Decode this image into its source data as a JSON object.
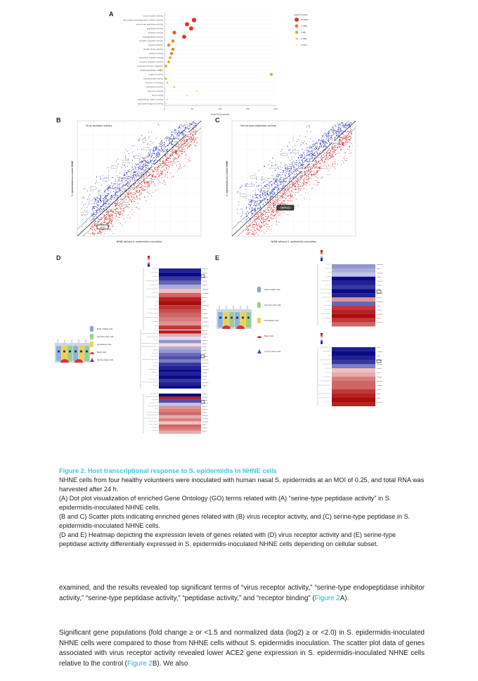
{
  "figure": {
    "panelA": {
      "letter": "A",
      "terms": [
        "virus receptor activity",
        "serine-type endopeptidase inhibitor activity",
        "serine-type peptidase activity",
        "peptidase activity",
        "receptor binding",
        "endopeptidase activity",
        "receptor regulator activity",
        "cytokine activity",
        "growth factor activity",
        "protein binding",
        "signaling receptor binding",
        "enzyme regulator activity",
        "molecular function regulator",
        "metallopeptidase activity",
        "heparin binding",
        "carbohydrate binding",
        "calcium ion binding",
        "chemokine activity",
        "hormone activity",
        "lipid binding",
        "extracellular matrix binding",
        "glycosaminoglycan binding"
      ],
      "legend_title": "Log10 P-value",
      "legend_values": [
        "25.652",
        "7.969",
        "3.66",
        "2.581",
        "1.561"
      ],
      "xlabel": "Fold Enrichment",
      "xticks": [
        "0",
        "50",
        "100",
        "150",
        "200"
      ]
    },
    "panelB": {
      "letter": "B",
      "title": "Virus receptor activity",
      "ylabel": "S. epidermidis-inoculated NHNE",
      "xlabel": "NHNE without S. epidermidis inoculation",
      "highlight": "ACE2"
    },
    "panelC": {
      "letter": "C",
      "title": "Serine-type peptidase activity",
      "ylabel": "S. epidermidis-inoculated NHNE",
      "xlabel": "NHNE without S. epidermidis inoculation",
      "highlight": "TMPRSS2"
    },
    "panelD": {
      "letter": "D"
    },
    "panelE": {
      "letter": "E"
    },
    "cell_legend": [
      "Multi-ciliated cells",
      "Secretory-like cells",
      "Suprabasal cells",
      "Basal cells",
      "Cycling basal cells"
    ]
  },
  "caption": {
    "title": "Figure 2.  Host transcriptional response to S. epidermidis in NHNE cells",
    "line1": "NHNE cells from four healthy volunteers were inoculated with human nasal S. epidermidis at an MOI of 0.25, and total RNA was harvested after 24 h.",
    "line2": "(A) Dot plot visualization of enriched Gene Ontology (GO) terms related with (A) “serine-type peptidase activity” in S. epidermidis-inoculated NHNE cells.",
    "line3": "(B and C) Scatter plots indicating enriched genes related with (B) virus receptor activity, and (C) serine-type peptidase in S. epidermidis-inoculated NHNE cells.",
    "line4": "(D and E) Heatmap depicting the expression levels of genes related with (D) virus receptor activity and (E) serine-type peptidase activity differentially expressed in S. epidermidis-inoculated NHNE cells depending on cellular subset."
  },
  "body": {
    "p1_pre": "examined, and the results revealed top significant terms of “virus receptor activity,” “serine-type endopeptidase inhibitor activity,” “serine-type peptidase activity,” “peptidase activity,” and “receptor binding” (",
    "p1_link": "Figure 2",
    "p1_post": "A).",
    "p2_pre": "Significant gene populations (fold change ≥ or <1.5 and normalized data (log2) ≥ or <2.0) in S. epidermidis-inoculated NHNE cells were compared to those from NHNE cells without S. epidermidis inoculation. The scatter plot data of genes associated with virus receptor activity revealed lower ACE2 gene expression in S. epidermidis-inoculated NHNE cells relative to the control (",
    "p2_link": "Figure 2",
    "p2_post": "B). We also"
  }
}
